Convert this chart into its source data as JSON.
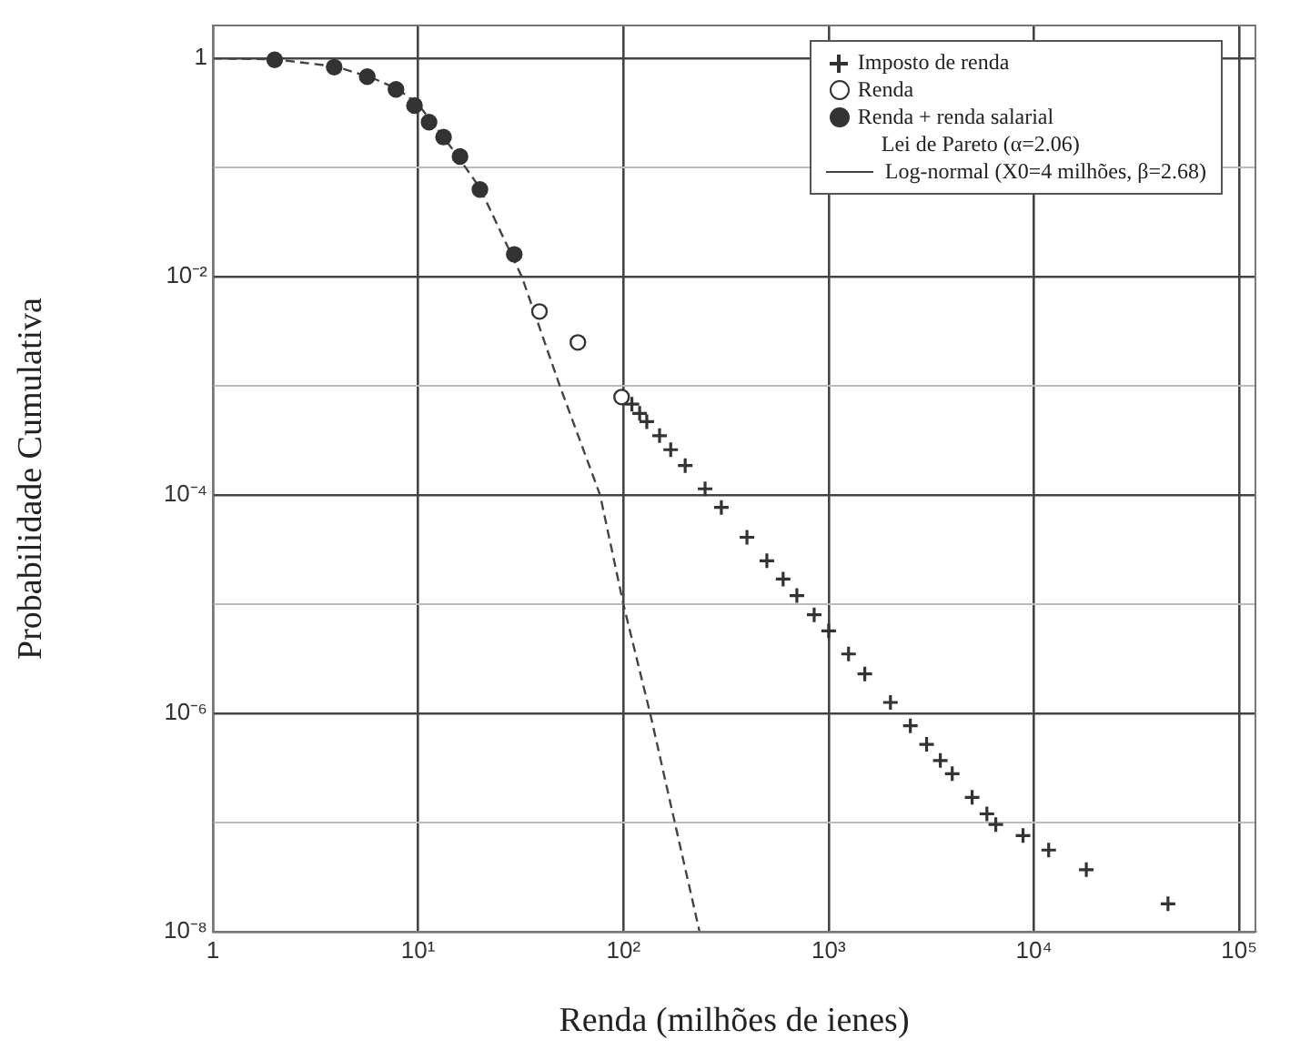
{
  "chart_data": {
    "type": "scatter",
    "xlabel": "Renda (milhões de ienes)",
    "ylabel": "Probabilidade Cumulativa",
    "log": "xy",
    "xlim": [
      1,
      120000
    ],
    "ylim": [
      1e-08,
      2
    ],
    "xticks": [
      {
        "value": 1,
        "label": "1"
      },
      {
        "value": 10,
        "label": "10¹"
      },
      {
        "value": 100,
        "label": "10²"
      },
      {
        "value": 1000,
        "label": "10³"
      },
      {
        "value": 10000,
        "label": "10⁴"
      },
      {
        "value": 100000,
        "label": "10⁵"
      }
    ],
    "yticks": [
      {
        "value": 1e-08,
        "label": "10⁻⁸"
      },
      {
        "value": 1e-07,
        "label": null
      },
      {
        "value": 1e-06,
        "label": "10⁻⁶"
      },
      {
        "value": 1e-05,
        "label": null
      },
      {
        "value": 0.0001,
        "label": "10⁻⁴"
      },
      {
        "value": 0.001,
        "label": null
      },
      {
        "value": 0.01,
        "label": "10⁻²"
      },
      {
        "value": 0.1,
        "label": null
      },
      {
        "value": 1,
        "label": "1"
      }
    ],
    "grid": true,
    "legend": "top right",
    "annotations": [
      "Lei de Pareto (α=2.06)"
    ],
    "series": [
      {
        "name": "Imposto de renda",
        "marker": "cross",
        "color": "#333333",
        "x": [
          110,
          120,
          130,
          150,
          170,
          200,
          250,
          300,
          400,
          500,
          600,
          700,
          850,
          1000,
          1250,
          1500,
          2000,
          2500,
          3000,
          3500,
          4000,
          5000,
          5900,
          6520,
          8850,
          11800,
          18000,
          45000
        ],
        "values": [
          0.00068,
          0.00056,
          0.00047,
          0.00035,
          0.00026,
          0.000186,
          0.000114,
          7.7e-05,
          4.1e-05,
          2.5e-05,
          1.7e-05,
          1.2e-05,
          8e-06,
          5.7e-06,
          3.5e-06,
          2.3e-06,
          1.26e-06,
          7.7e-07,
          5.2e-07,
          3.7e-07,
          2.8e-07,
          1.7e-07,
          1.2e-07,
          9.6e-08,
          7.6e-08,
          5.6e-08,
          3.7e-08,
          1.8e-08
        ]
      },
      {
        "name": "Renda",
        "marker": "circle",
        "color": "#ffffff",
        "x": [
          39,
          60,
          98
        ],
        "values": [
          0.0048,
          0.0025,
          0.00079
        ]
      },
      {
        "name": "Renda + renda salarial",
        "marker": "circle",
        "color": "#333333",
        "x": [
          2,
          3.9,
          5.65,
          7.8,
          9.6,
          11.3,
          13.3,
          16,
          20,
          29.4
        ],
        "values": [
          0.97,
          0.83,
          0.68,
          0.52,
          0.37,
          0.26,
          0.19,
          0.126,
          0.063,
          0.016
        ]
      },
      {
        "name": "Log-normal (X0=4 milhões, β=2.68)",
        "type": "line",
        "marker": "none",
        "line_style": "dashed",
        "color": "#444444",
        "x": [
          1,
          2,
          4,
          6,
          8,
          10,
          15,
          20,
          32,
          49,
          77,
          100,
          135,
          178,
          235
        ],
        "values": [
          1,
          0.98,
          0.84,
          0.66,
          0.52,
          0.38,
          0.14,
          0.065,
          0.01,
          0.001,
          0.0001,
          1e-05,
          1e-06,
          1e-07,
          1e-08
        ]
      }
    ]
  }
}
